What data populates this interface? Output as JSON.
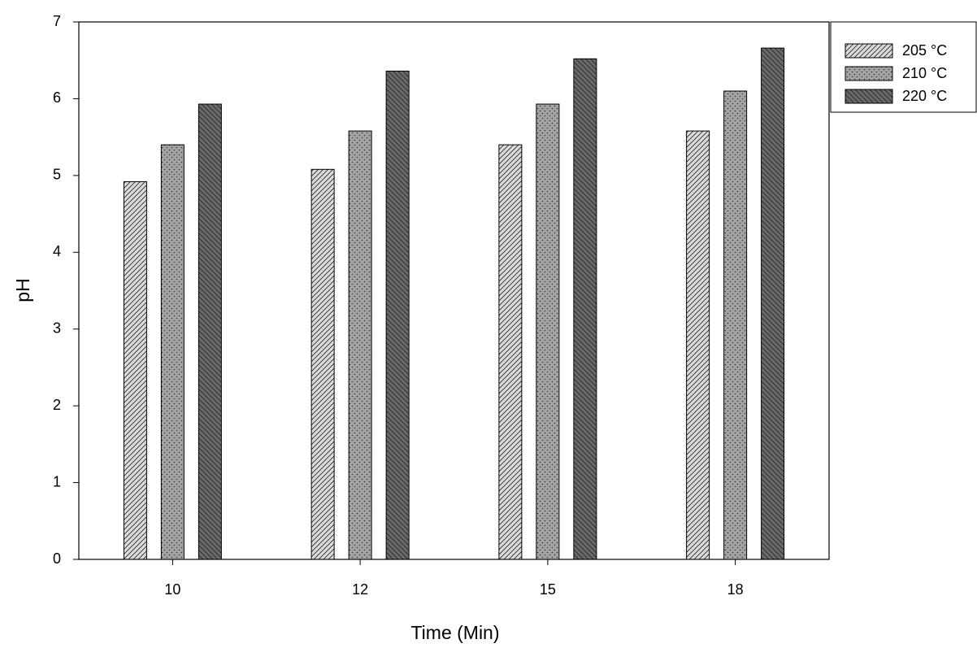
{
  "chart_data": {
    "type": "bar",
    "x_label": "Time (Min)",
    "y_label": "pH",
    "categories": [
      "10",
      "12",
      "15",
      "18"
    ],
    "series": [
      {
        "name": "205 °C",
        "color": "#dcdcdc",
        "values": [
          4.92,
          5.08,
          5.4,
          5.58
        ]
      },
      {
        "name": "210 °C",
        "color": "#a4a4a4",
        "values": [
          5.4,
          5.58,
          5.93,
          6.1
        ]
      },
      {
        "name": "220 °C",
        "color": "#6a6a6a",
        "values": [
          5.93,
          6.36,
          6.52,
          6.66
        ]
      }
    ],
    "ylim": [
      0,
      7
    ],
    "yticks": [
      0,
      1,
      2,
      3,
      4,
      5,
      6,
      7
    ],
    "grid": false,
    "legend": "outside-top-right"
  }
}
